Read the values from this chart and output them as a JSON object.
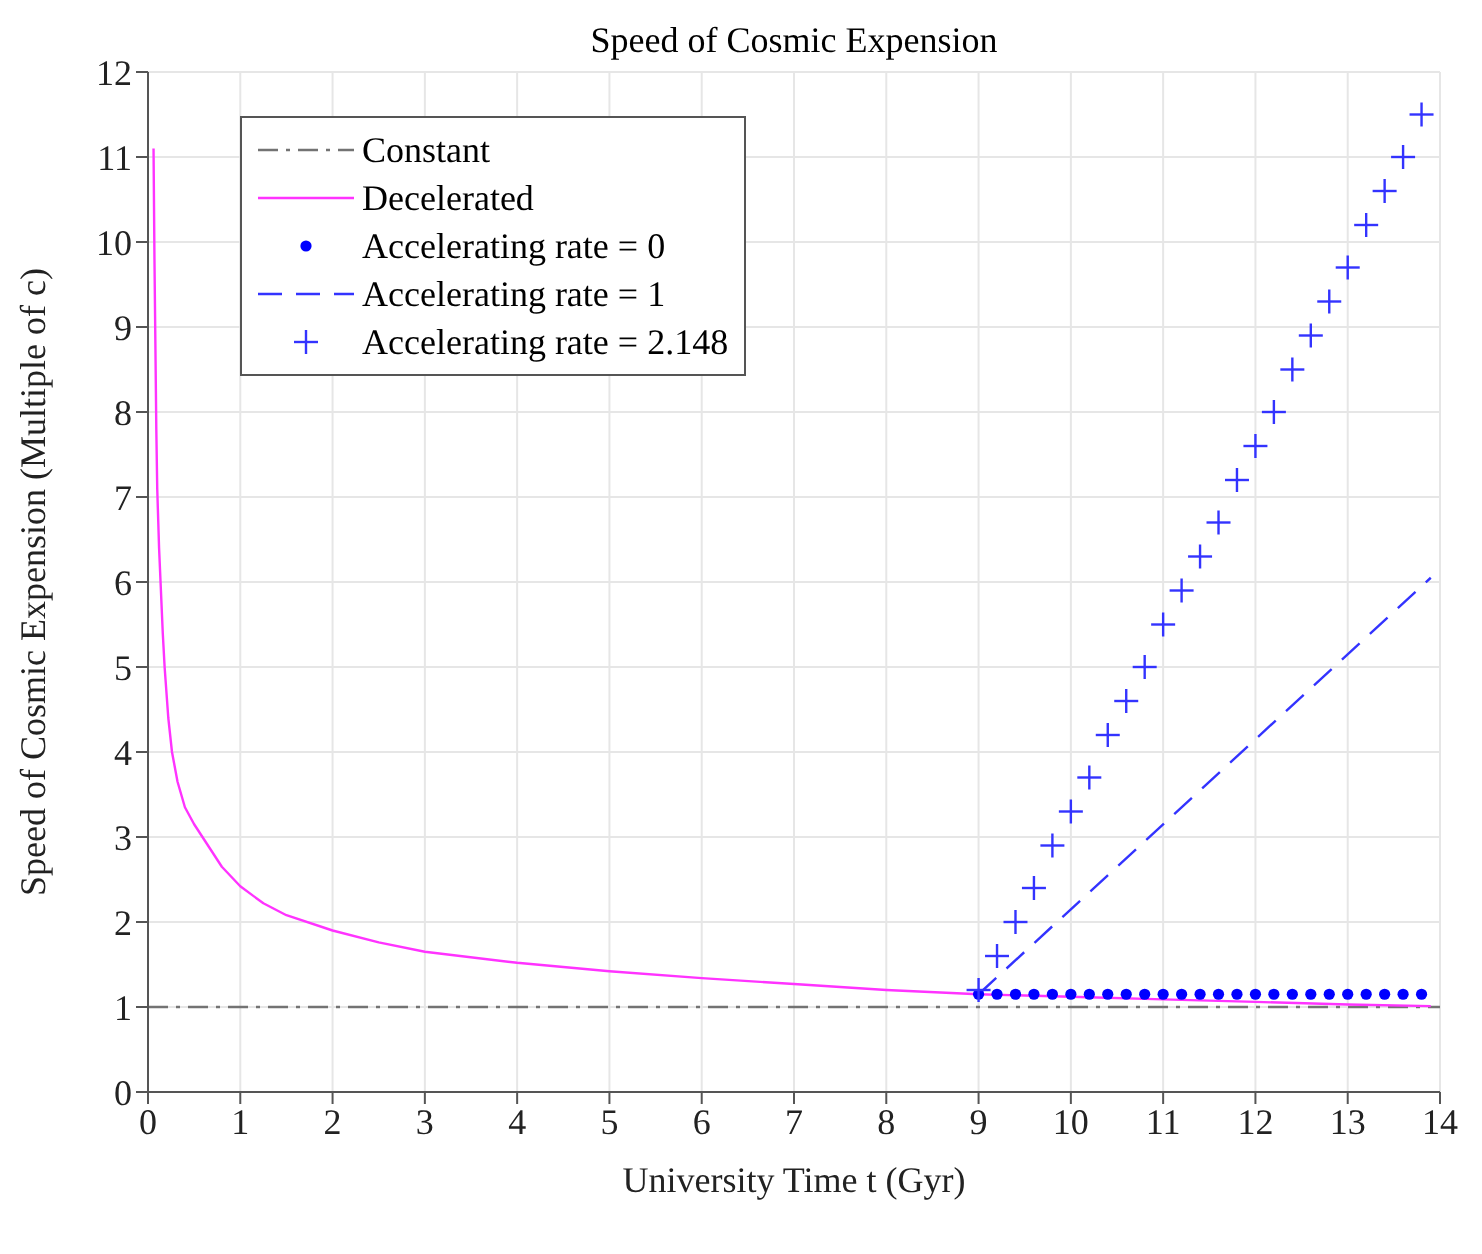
{
  "chart_data": {
    "type": "line",
    "title": "Speed of Cosmic Expension",
    "xlabel": "University Time t (Gyr)",
    "ylabel": "Speed of Cosmic Expension (Multiple of c)",
    "xlim": [
      0,
      14
    ],
    "ylim": [
      0,
      12
    ],
    "xticks": [
      0,
      1,
      2,
      3,
      4,
      5,
      6,
      7,
      8,
      9,
      10,
      11,
      12,
      13,
      14
    ],
    "yticks": [
      0,
      1,
      2,
      3,
      4,
      5,
      6,
      7,
      8,
      9,
      10,
      11,
      12
    ],
    "grid": true,
    "legend": "top left",
    "series": [
      {
        "name": "Constant",
        "color": "#737373",
        "line_style": "dashdot",
        "marker": "none",
        "x": [
          0,
          14
        ],
        "values": [
          1,
          1
        ]
      },
      {
        "name": "Decelerated",
        "color": "#ff33ff",
        "line_style": "solid",
        "marker": "none",
        "x": [
          0.06,
          0.07,
          0.08,
          0.09,
          0.1,
          0.12,
          0.14,
          0.16,
          0.18,
          0.22,
          0.26,
          0.32,
          0.4,
          0.5,
          0.62,
          0.8,
          1,
          1.25,
          1.5,
          2,
          2.5,
          3,
          4,
          5,
          6,
          7,
          8,
          9,
          10,
          11,
          12,
          13,
          13.9
        ],
        "values": [
          11.1,
          9.8,
          8.8,
          7.8,
          7.1,
          6.4,
          5.9,
          5.4,
          5.0,
          4.4,
          4.0,
          3.65,
          3.35,
          3.15,
          2.95,
          2.65,
          2.42,
          2.22,
          2.08,
          1.9,
          1.76,
          1.65,
          1.52,
          1.42,
          1.34,
          1.27,
          1.2,
          1.15,
          1.12,
          1.09,
          1.06,
          1.03,
          1.01
        ]
      },
      {
        "name": "Accelerating rate = 0",
        "type": "scatter",
        "color": "#0000ff",
        "marker": "circle",
        "x": [
          9,
          9.2,
          9.4,
          9.6,
          9.8,
          10,
          10.2,
          10.4,
          10.6,
          10.8,
          11,
          11.2,
          11.4,
          11.6,
          11.8,
          12,
          12.2,
          12.4,
          12.6,
          12.8,
          13,
          13.2,
          13.4,
          13.6,
          13.8
        ],
        "values": [
          1.15,
          1.15,
          1.15,
          1.15,
          1.15,
          1.15,
          1.15,
          1.15,
          1.15,
          1.15,
          1.15,
          1.15,
          1.15,
          1.15,
          1.15,
          1.15,
          1.15,
          1.15,
          1.15,
          1.15,
          1.15,
          1.15,
          1.15,
          1.15,
          1.15
        ]
      },
      {
        "name": "Accelerating rate = 1",
        "color": "#3333ff",
        "line_style": "dashed",
        "marker": "none",
        "x": [
          9,
          13.9
        ],
        "values": [
          1.15,
          6.05
        ]
      },
      {
        "name": "Accelerating rate = 2.148",
        "type": "scatter",
        "color": "#3333ff",
        "marker": "cross",
        "x": [
          9,
          9.2,
          9.4,
          9.6,
          9.8,
          10,
          10.2,
          10.4,
          10.6,
          10.8,
          11,
          11.2,
          11.4,
          11.6,
          11.8,
          12,
          12.2,
          12.4,
          12.6,
          12.8,
          13,
          13.2,
          13.4,
          13.6,
          13.8
        ],
        "values": [
          1.2,
          1.6,
          2.0,
          2.4,
          2.9,
          3.3,
          3.7,
          4.2,
          4.6,
          5.0,
          5.5,
          5.9,
          6.3,
          6.7,
          7.2,
          7.6,
          8.0,
          8.5,
          8.9,
          9.3,
          9.7,
          10.2,
          10.6,
          11.0,
          11.5
        ]
      }
    ]
  }
}
